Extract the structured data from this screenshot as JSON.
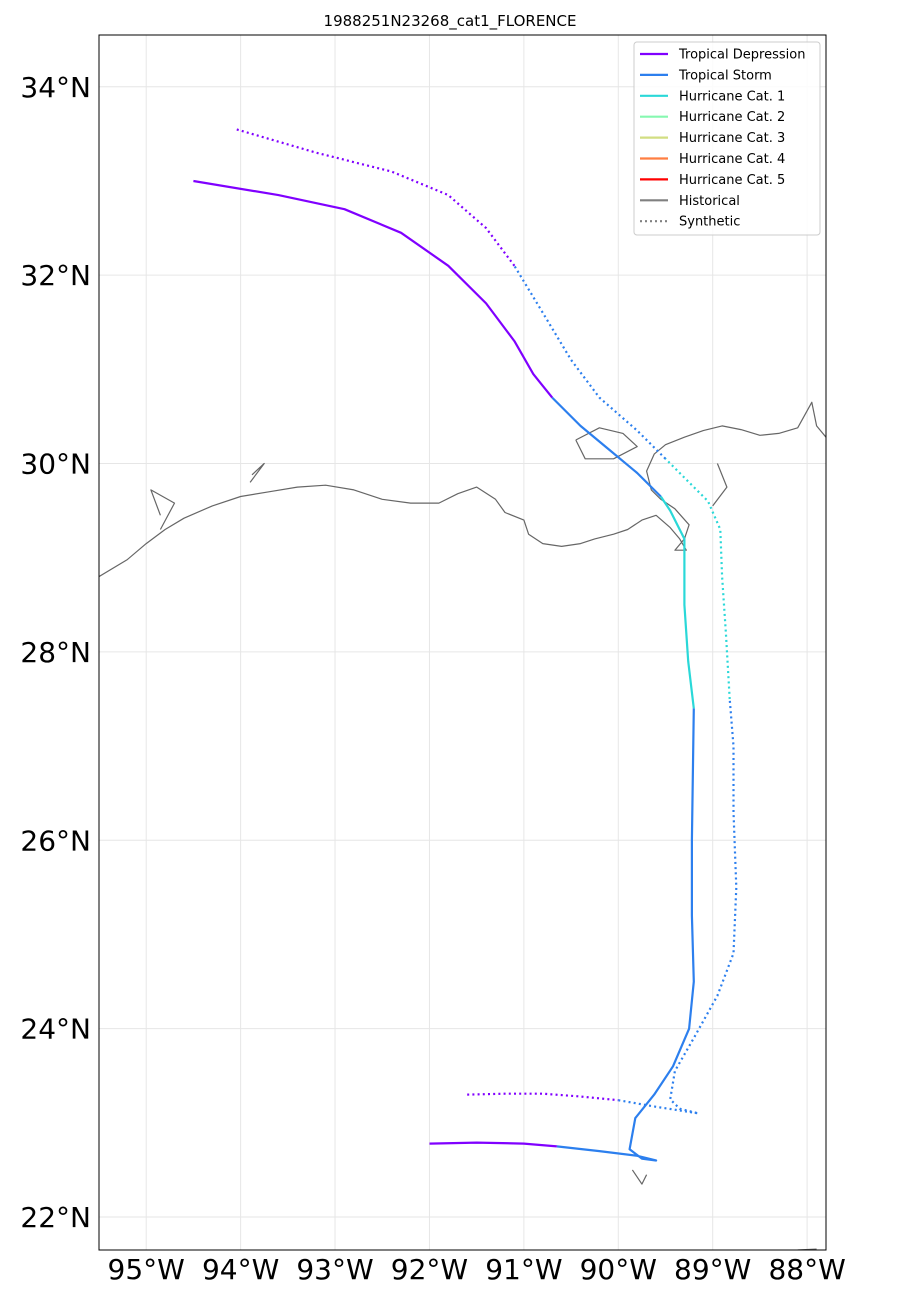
{
  "title": "1988251N23268_cat1_FLORENCE",
  "colors": {
    "tropical_depression": "#8000ff",
    "tropical_storm": "#2c7fee",
    "cat1": "#2ad8d8",
    "cat2": "#86f8b0",
    "cat3": "#d2de82",
    "cat4": "#ff7e42",
    "cat5": "#ff0000",
    "historical": "#808080",
    "coastline": "#666666",
    "grid": "#e6e6e6"
  },
  "chart_data": {
    "type": "map",
    "title": "1988251N23268_cat1_FLORENCE",
    "lon_range": [
      -95.5,
      -87.8
    ],
    "lat_range": [
      21.65,
      34.55
    ],
    "lon_ticks": [
      {
        "value": -95,
        "label": "95°W"
      },
      {
        "value": -94,
        "label": "94°W"
      },
      {
        "value": -93,
        "label": "93°W"
      },
      {
        "value": -92,
        "label": "92°W"
      },
      {
        "value": -91,
        "label": "91°W"
      },
      {
        "value": -90,
        "label": "90°W"
      },
      {
        "value": -89,
        "label": "89°W"
      },
      {
        "value": -88,
        "label": "88°W"
      }
    ],
    "lat_ticks": [
      {
        "value": 22,
        "label": "22°N"
      },
      {
        "value": 24,
        "label": "24°N"
      },
      {
        "value": 26,
        "label": "26°N"
      },
      {
        "value": 28,
        "label": "28°N"
      },
      {
        "value": 30,
        "label": "30°N"
      },
      {
        "value": 32,
        "label": "32°N"
      },
      {
        "value": 34,
        "label": "34°N"
      }
    ],
    "legend": {
      "placement": "top-right",
      "entries": [
        {
          "label": "Tropical Depression",
          "color_key": "tropical_depression",
          "style": "solid"
        },
        {
          "label": "Tropical Storm",
          "color_key": "tropical_storm",
          "style": "solid"
        },
        {
          "label": "Hurricane Cat. 1",
          "color_key": "cat1",
          "style": "solid"
        },
        {
          "label": "Hurricane Cat. 2",
          "color_key": "cat2",
          "style": "solid"
        },
        {
          "label": "Hurricane Cat. 3",
          "color_key": "cat3",
          "style": "solid"
        },
        {
          "label": "Hurricane Cat. 4",
          "color_key": "cat4",
          "style": "solid"
        },
        {
          "label": "Hurricane Cat. 5",
          "color_key": "cat5",
          "style": "solid"
        },
        {
          "label": "Historical",
          "color_key": "historical",
          "style": "solid"
        },
        {
          "label": "Synthetic",
          "color_key": "historical",
          "style": "dotted"
        }
      ]
    },
    "tracks": [
      {
        "name": "historical",
        "style": "solid",
        "segments": [
          {
            "category": "tropical_depression",
            "points": [
              [
                -92.0,
                22.78
              ],
              [
                -91.5,
                22.79
              ],
              [
                -91.0,
                22.78
              ],
              [
                -90.65,
                22.75
              ]
            ]
          },
          {
            "category": "tropical_storm",
            "points": [
              [
                -90.65,
                22.75
              ],
              [
                -90.2,
                22.7
              ],
              [
                -89.8,
                22.65
              ],
              [
                -89.6,
                22.6
              ],
              [
                -89.75,
                22.62
              ],
              [
                -89.88,
                22.72
              ],
              [
                -89.82,
                23.05
              ],
              [
                -89.62,
                23.3
              ],
              [
                -89.42,
                23.6
              ],
              [
                -89.25,
                24.0
              ],
              [
                -89.2,
                24.5
              ],
              [
                -89.22,
                25.2
              ],
              [
                -89.22,
                26.0
              ],
              [
                -89.2,
                27.4
              ]
            ]
          },
          {
            "category": "cat1",
            "points": [
              [
                -89.2,
                27.4
              ],
              [
                -89.26,
                27.9
              ],
              [
                -89.3,
                28.5
              ],
              [
                -89.3,
                28.75
              ],
              [
                -89.3,
                29.2
              ],
              [
                -89.45,
                29.5
              ],
              [
                -89.55,
                29.65
              ]
            ]
          },
          {
            "category": "tropical_storm",
            "points": [
              [
                -89.55,
                29.65
              ],
              [
                -89.8,
                29.9
              ],
              [
                -90.1,
                30.15
              ],
              [
                -90.4,
                30.4
              ],
              [
                -90.7,
                30.7
              ]
            ]
          },
          {
            "category": "tropical_depression",
            "points": [
              [
                -90.7,
                30.7
              ],
              [
                -90.9,
                30.95
              ],
              [
                -91.1,
                31.3
              ],
              [
                -91.4,
                31.7
              ],
              [
                -91.8,
                32.1
              ],
              [
                -92.3,
                32.45
              ],
              [
                -92.9,
                32.7
              ],
              [
                -93.6,
                32.85
              ],
              [
                -94.5,
                33.0
              ]
            ]
          }
        ]
      },
      {
        "name": "synthetic",
        "style": "dotted",
        "segments": [
          {
            "category": "tropical_depression",
            "points": [
              [
                -91.6,
                23.3
              ],
              [
                -91.2,
                23.31
              ],
              [
                -90.8,
                23.31
              ],
              [
                -90.4,
                23.28
              ],
              [
                -90.0,
                23.24
              ]
            ]
          },
          {
            "category": "tropical_storm",
            "points": [
              [
                -90.0,
                23.24
              ],
              [
                -89.6,
                23.17
              ],
              [
                -89.15,
                23.1
              ],
              [
                -89.35,
                23.15
              ],
              [
                -89.45,
                23.25
              ],
              [
                -89.4,
                23.55
              ],
              [
                -89.2,
                23.9
              ],
              [
                -88.95,
                24.35
              ],
              [
                -88.78,
                24.8
              ],
              [
                -88.75,
                25.5
              ],
              [
                -88.78,
                26.3
              ],
              [
                -88.78,
                27.0
              ],
              [
                -88.82,
                27.5
              ]
            ]
          },
          {
            "category": "cat1",
            "points": [
              [
                -88.82,
                27.5
              ],
              [
                -88.86,
                28.2
              ],
              [
                -88.9,
                28.8
              ],
              [
                -88.92,
                29.3
              ],
              [
                -89.05,
                29.6
              ],
              [
                -89.3,
                29.85
              ],
              [
                -89.5,
                30.05
              ]
            ]
          },
          {
            "category": "tropical_storm",
            "points": [
              [
                -89.5,
                30.05
              ],
              [
                -89.8,
                30.35
              ],
              [
                -90.2,
                30.7
              ],
              [
                -90.5,
                31.1
              ],
              [
                -90.8,
                31.6
              ],
              [
                -91.1,
                32.1
              ]
            ]
          },
          {
            "category": "tropical_depression",
            "points": [
              [
                -91.1,
                32.1
              ],
              [
                -91.4,
                32.5
              ],
              [
                -91.8,
                32.85
              ],
              [
                -92.4,
                33.1
              ],
              [
                -93.2,
                33.3
              ],
              [
                -94.05,
                33.55
              ]
            ]
          }
        ]
      }
    ],
    "coastlines": [
      [
        [
          -95.5,
          28.8
        ],
        [
          -95.2,
          28.98
        ],
        [
          -95.0,
          29.15
        ],
        [
          -94.8,
          29.3
        ],
        [
          -94.6,
          29.42
        ],
        [
          -94.3,
          29.55
        ],
        [
          -94.0,
          29.65
        ],
        [
          -93.7,
          29.7
        ],
        [
          -93.4,
          29.75
        ],
        [
          -93.1,
          29.77
        ],
        [
          -92.8,
          29.72
        ],
        [
          -92.5,
          29.62
        ],
        [
          -92.2,
          29.58
        ],
        [
          -91.9,
          29.58
        ],
        [
          -91.7,
          29.68
        ],
        [
          -91.5,
          29.75
        ],
        [
          -91.3,
          29.62
        ],
        [
          -91.2,
          29.48
        ],
        [
          -91.0,
          29.4
        ],
        [
          -90.95,
          29.25
        ],
        [
          -90.8,
          29.15
        ],
        [
          -90.6,
          29.12
        ],
        [
          -90.4,
          29.15
        ],
        [
          -90.25,
          29.2
        ],
        [
          -90.05,
          29.25
        ],
        [
          -89.9,
          29.3
        ],
        [
          -89.75,
          29.4
        ],
        [
          -89.6,
          29.45
        ],
        [
          -89.45,
          29.32
        ],
        [
          -89.35,
          29.2
        ],
        [
          -89.28,
          29.08
        ],
        [
          -89.4,
          29.08
        ],
        [
          -89.3,
          29.2
        ],
        [
          -89.25,
          29.35
        ],
        [
          -89.4,
          29.52
        ],
        [
          -89.55,
          29.62
        ],
        [
          -89.65,
          29.72
        ],
        [
          -89.7,
          29.92
        ],
        [
          -89.62,
          30.1
        ],
        [
          -89.5,
          30.2
        ],
        [
          -89.3,
          30.28
        ],
        [
          -89.1,
          30.35
        ],
        [
          -88.9,
          30.4
        ],
        [
          -88.7,
          30.36
        ],
        [
          -88.5,
          30.3
        ],
        [
          -88.3,
          30.32
        ],
        [
          -88.1,
          30.38
        ],
        [
          -87.95,
          30.65
        ],
        [
          -87.9,
          30.4
        ],
        [
          -87.8,
          30.28
        ]
      ],
      [
        [
          -90.45,
          30.25
        ],
        [
          -90.2,
          30.38
        ],
        [
          -89.95,
          30.32
        ],
        [
          -89.8,
          30.18
        ],
        [
          -90.05,
          30.05
        ],
        [
          -90.35,
          30.05
        ],
        [
          -90.45,
          30.25
        ]
      ],
      [
        [
          -94.85,
          29.3
        ],
        [
          -94.7,
          29.58
        ],
        [
          -94.95,
          29.72
        ],
        [
          -94.85,
          29.45
        ]
      ],
      [
        [
          -93.9,
          29.8
        ],
        [
          -93.75,
          30.0
        ],
        [
          -93.88,
          29.88
        ]
      ],
      [
        [
          -88.95,
          30.0
        ],
        [
          -88.85,
          29.75
        ],
        [
          -89.0,
          29.55
        ]
      ],
      [
        [
          -89.85,
          22.5
        ],
        [
          -89.75,
          22.35
        ],
        [
          -89.7,
          22.45
        ]
      ],
      [
        [
          -88.1,
          21.65
        ],
        [
          -87.9,
          21.66
        ]
      ]
    ]
  }
}
